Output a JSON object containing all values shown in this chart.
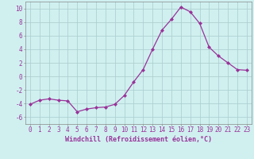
{
  "x": [
    0,
    1,
    2,
    3,
    4,
    5,
    6,
    7,
    8,
    9,
    10,
    11,
    12,
    13,
    14,
    15,
    16,
    17,
    18,
    19,
    20,
    21,
    22,
    23
  ],
  "y": [
    -4.1,
    -3.5,
    -3.3,
    -3.5,
    -3.6,
    -5.2,
    -4.8,
    -4.6,
    -4.5,
    -4.1,
    -2.8,
    -0.8,
    1.0,
    4.0,
    6.8,
    8.4,
    10.2,
    9.5,
    7.8,
    4.3,
    3.0,
    2.0,
    1.0,
    0.9
  ],
  "line_color": "#993399",
  "marker": "D",
  "marker_size": 2.0,
  "bg_color": "#d0f0f0",
  "grid_color": "#aacccc",
  "xlabel": "Windchill (Refroidissement éolien,°C)",
  "xlim": [
    -0.5,
    23.5
  ],
  "ylim": [
    -7,
    11
  ],
  "yticks": [
    -6,
    -4,
    -2,
    0,
    2,
    4,
    6,
    8,
    10
  ],
  "xticks": [
    0,
    1,
    2,
    3,
    4,
    5,
    6,
    7,
    8,
    9,
    10,
    11,
    12,
    13,
    14,
    15,
    16,
    17,
    18,
    19,
    20,
    21,
    22,
    23
  ],
  "tick_fontsize": 5.5,
  "xlabel_fontsize": 6.0
}
